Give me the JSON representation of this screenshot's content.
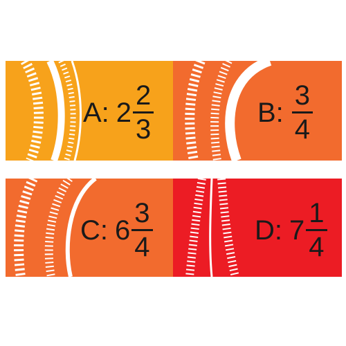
{
  "colors": {
    "card_a": "#F7A21B",
    "card_b": "#F26B2E",
    "card_c": "#F26B2E",
    "card_d": "#EC1C24",
    "tire_track": "#ffffff"
  },
  "cards": [
    {
      "letter": "A:",
      "whole": "2",
      "numerator": "2",
      "denominator": "3"
    },
    {
      "letter": "B:",
      "whole": "",
      "numerator": "3",
      "denominator": "4"
    },
    {
      "letter": "C:",
      "whole": "6",
      "numerator": "3",
      "denominator": "4"
    },
    {
      "letter": "D:",
      "whole": "7",
      "numerator": "1",
      "denominator": "4"
    }
  ]
}
